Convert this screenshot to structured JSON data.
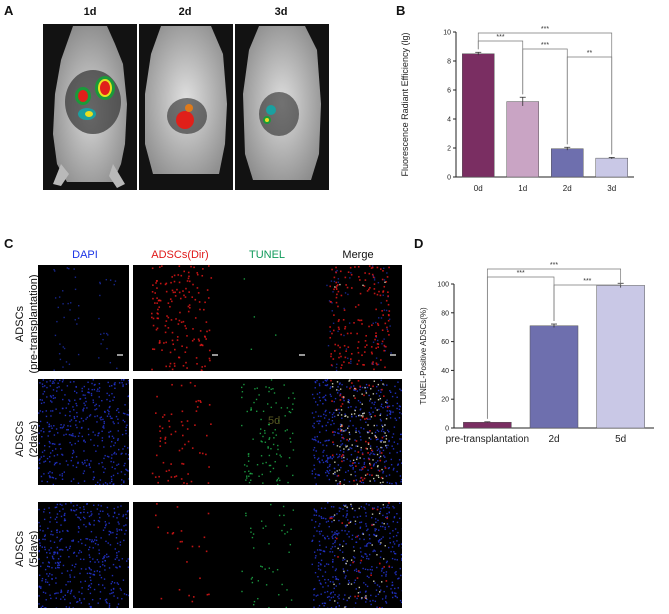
{
  "panels": {
    "A": "A",
    "B": "B",
    "C": "C",
    "D": "D"
  },
  "panel_a": {
    "day_labels": [
      "1d",
      "2d",
      "3d"
    ]
  },
  "panel_c": {
    "column_headers": [
      {
        "text": "DAPI",
        "color": "#1a33e6"
      },
      {
        "text": "ADSCs(Dir)",
        "color": "#e01818"
      },
      {
        "text": "TUNEL",
        "color": "#0f9a5a"
      },
      {
        "text": "Merge",
        "color": "#111111"
      }
    ],
    "row_labels": [
      [
        "ADSCs",
        "(pre-transplantation)"
      ],
      [
        "ADSCs",
        "(2days)"
      ],
      [
        "ADSCs",
        "(5days)"
      ]
    ],
    "overlay_text": "5d"
  },
  "chart_data": [
    {
      "id": "B",
      "type": "bar",
      "ylabel": "Fluorescence Radiant Efficiency (lg)",
      "xlabel": "",
      "categories": [
        "0d",
        "1d",
        "2d",
        "3d"
      ],
      "values": [
        8.5,
        5.2,
        1.95,
        1.3
      ],
      "errors": [
        0.1,
        0.3,
        0.1,
        0.05
      ],
      "colors": [
        "#7a2e62",
        "#c9a4c4",
        "#6e6fae",
        "#c9c8e6"
      ],
      "ylim": [
        0,
        10
      ],
      "yticks": [
        0,
        2,
        4,
        6,
        8,
        10
      ],
      "significance": [
        {
          "from": 0,
          "to": 3,
          "label": "***"
        },
        {
          "from": 0,
          "to": 1,
          "label": "***"
        },
        {
          "from": 1,
          "to": 2,
          "label": "***"
        },
        {
          "from": 2,
          "to": 3,
          "label": "**"
        }
      ]
    },
    {
      "id": "D",
      "type": "bar",
      "ylabel": "TUNEL-Positive ADSCs(%)",
      "xlabel": "",
      "categories": [
        "pre-transplantation",
        "2d",
        "5d"
      ],
      "values": [
        4,
        71,
        99
      ],
      "errors": [
        0.3,
        1.2,
        1.5
      ],
      "colors": [
        "#7a2e62",
        "#6e6fae",
        "#c9c8e6"
      ],
      "ylim": [
        0,
        100
      ],
      "yticks": [
        0,
        20,
        40,
        60,
        80,
        100
      ],
      "significance": [
        {
          "from": 0,
          "to": 2,
          "label": "***"
        },
        {
          "from": 0,
          "to": 1,
          "label": "***"
        },
        {
          "from": 1,
          "to": 2,
          "label": "***"
        }
      ]
    }
  ]
}
